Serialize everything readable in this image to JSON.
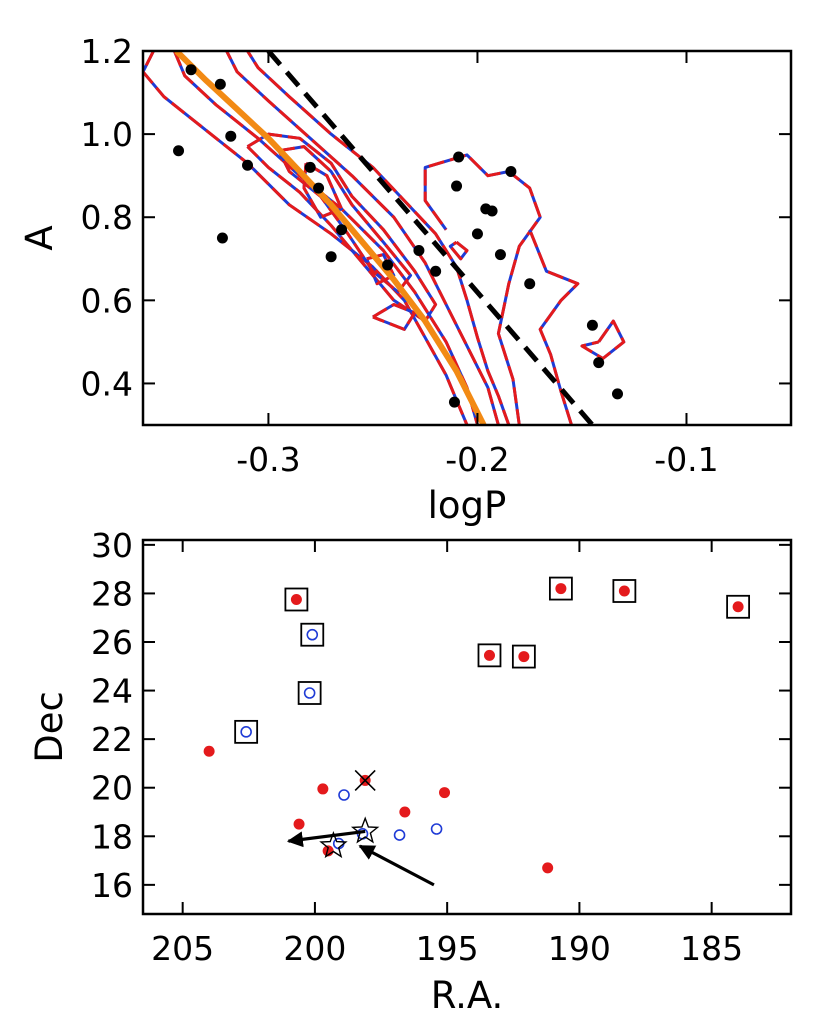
{
  "chart_data": [
    {
      "type": "scatter",
      "panel": "top",
      "xlabel": "logP",
      "ylabel": "A",
      "xlim": [
        -0.36,
        -0.05
      ],
      "ylim": [
        0.3,
        1.2
      ],
      "xticks": [
        -0.3,
        -0.2,
        -0.1
      ],
      "xtick_labels": [
        "-0.3",
        "-0.2",
        "-0.1"
      ],
      "yticks": [
        0.4,
        0.6,
        0.8,
        1.0,
        1.2
      ],
      "ytick_labels": [
        "0.4",
        "0.6",
        "0.8",
        "1.0",
        "1.2"
      ],
      "colors": {
        "points": "#000000",
        "contour_red": "#e41a1c",
        "contour_blue": "#1f3bd6",
        "fit_curve": "#f28a14",
        "dashed_line": "#000000"
      },
      "series": [
        {
          "name": "stars",
          "marker": "filled-circle",
          "x": [
            -0.343,
            -0.337,
            -0.323,
            -0.318,
            -0.322,
            -0.31,
            -0.28,
            -0.276,
            -0.265,
            -0.27,
            -0.243,
            -0.228,
            -0.22,
            -0.211,
            -0.21,
            -0.209,
            -0.2,
            -0.196,
            -0.193,
            -0.189,
            -0.184,
            -0.175,
            -0.145,
            -0.142,
            -0.133
          ],
          "y": [
            0.96,
            1.155,
            1.12,
            0.995,
            0.75,
            0.925,
            0.92,
            0.87,
            0.77,
            0.705,
            0.685,
            0.72,
            0.67,
            0.355,
            0.875,
            0.945,
            0.76,
            0.82,
            0.815,
            0.71,
            0.91,
            0.64,
            0.54,
            0.45,
            0.375
          ]
        },
        {
          "name": "fit curve",
          "style": "solid-orange",
          "x": [
            -0.344,
            -0.33,
            -0.315,
            -0.3,
            -0.285,
            -0.27,
            -0.255,
            -0.24,
            -0.225,
            -0.21,
            -0.197
          ],
          "y": [
            1.2,
            1.13,
            1.06,
            0.99,
            0.91,
            0.83,
            0.74,
            0.65,
            0.55,
            0.43,
            0.3
          ]
        },
        {
          "name": "dashed line",
          "style": "dashed-black",
          "x": [
            -0.3,
            -0.145
          ],
          "y": [
            1.2,
            0.3
          ]
        }
      ],
      "contours": [
        [
          [
            -0.355,
            1.2
          ],
          [
            -0.36,
            1.15
          ],
          [
            -0.35,
            1.09
          ],
          [
            -0.33,
            1.01
          ],
          [
            -0.31,
            0.93
          ],
          [
            -0.29,
            0.83
          ],
          [
            -0.27,
            0.76
          ],
          [
            -0.25,
            0.68
          ],
          [
            -0.235,
            0.6
          ],
          [
            -0.225,
            0.51
          ],
          [
            -0.215,
            0.42
          ],
          [
            -0.21,
            0.36
          ],
          [
            -0.205,
            0.3
          ]
        ],
        [
          [
            -0.185,
            0.3
          ],
          [
            -0.19,
            0.37
          ],
          [
            -0.195,
            0.43
          ],
          [
            -0.2,
            0.51
          ],
          [
            -0.205,
            0.6
          ],
          [
            -0.21,
            0.68
          ],
          [
            -0.22,
            0.76
          ],
          [
            -0.235,
            0.84
          ],
          [
            -0.25,
            0.92
          ],
          [
            -0.27,
            1.0
          ],
          [
            -0.29,
            1.09
          ],
          [
            -0.305,
            1.16
          ],
          [
            -0.31,
            1.2
          ]
        ],
        [
          [
            -0.345,
            1.2
          ],
          [
            -0.34,
            1.14
          ],
          [
            -0.325,
            1.07
          ],
          [
            -0.305,
            0.99
          ],
          [
            -0.285,
            0.9
          ],
          [
            -0.265,
            0.82
          ],
          [
            -0.245,
            0.72
          ],
          [
            -0.23,
            0.62
          ],
          [
            -0.215,
            0.5
          ],
          [
            -0.205,
            0.39
          ],
          [
            -0.2,
            0.3
          ]
        ],
        [
          [
            -0.19,
            0.3
          ],
          [
            -0.195,
            0.39
          ],
          [
            -0.205,
            0.49
          ],
          [
            -0.215,
            0.59
          ],
          [
            -0.225,
            0.69
          ],
          [
            -0.24,
            0.8
          ],
          [
            -0.26,
            0.9
          ],
          [
            -0.28,
            0.99
          ],
          [
            -0.3,
            1.08
          ],
          [
            -0.315,
            1.15
          ],
          [
            -0.32,
            1.2
          ]
        ],
        [
          [
            -0.31,
            0.97
          ],
          [
            -0.3,
            1.0
          ],
          [
            -0.285,
            0.99
          ],
          [
            -0.27,
            0.93
          ],
          [
            -0.26,
            0.85
          ],
          [
            -0.245,
            0.77
          ],
          [
            -0.23,
            0.67
          ],
          [
            -0.22,
            0.59
          ],
          [
            -0.225,
            0.55
          ],
          [
            -0.24,
            0.6
          ],
          [
            -0.255,
            0.69
          ],
          [
            -0.27,
            0.78
          ],
          [
            -0.285,
            0.86
          ],
          [
            -0.3,
            0.92
          ],
          [
            -0.31,
            0.97
          ]
        ],
        [
          [
            -0.295,
            0.96
          ],
          [
            -0.283,
            0.97
          ],
          [
            -0.27,
            0.91
          ],
          [
            -0.26,
            0.83
          ],
          [
            -0.245,
            0.74
          ],
          [
            -0.232,
            0.66
          ],
          [
            -0.238,
            0.62
          ],
          [
            -0.25,
            0.67
          ],
          [
            -0.262,
            0.76
          ],
          [
            -0.275,
            0.85
          ],
          [
            -0.29,
            0.91
          ],
          [
            -0.295,
            0.96
          ]
        ],
        [
          [
            -0.282,
            0.93
          ],
          [
            -0.272,
            0.9
          ],
          [
            -0.265,
            0.82
          ],
          [
            -0.275,
            0.8
          ],
          [
            -0.283,
            0.87
          ],
          [
            -0.282,
            0.93
          ]
        ],
        [
          [
            -0.253,
            0.7
          ],
          [
            -0.245,
            0.71
          ],
          [
            -0.24,
            0.66
          ],
          [
            -0.248,
            0.64
          ],
          [
            -0.253,
            0.7
          ]
        ],
        [
          [
            -0.18,
            0.3
          ],
          [
            -0.183,
            0.41
          ],
          [
            -0.19,
            0.52
          ],
          [
            -0.185,
            0.64
          ],
          [
            -0.18,
            0.73
          ],
          [
            -0.17,
            0.8
          ],
          [
            -0.175,
            0.87
          ],
          [
            -0.185,
            0.91
          ],
          [
            -0.195,
            0.9
          ],
          [
            -0.205,
            0.95
          ],
          [
            -0.225,
            0.92
          ],
          [
            -0.225,
            0.84
          ],
          [
            -0.215,
            0.77
          ]
        ],
        [
          [
            -0.155,
            0.3
          ],
          [
            -0.16,
            0.38
          ],
          [
            -0.165,
            0.47
          ],
          [
            -0.17,
            0.53
          ],
          [
            -0.16,
            0.6
          ],
          [
            -0.152,
            0.64
          ],
          [
            -0.167,
            0.67
          ],
          [
            -0.175,
            0.77
          ]
        ],
        [
          [
            -0.142,
            0.5
          ],
          [
            -0.135,
            0.55
          ],
          [
            -0.13,
            0.5
          ],
          [
            -0.14,
            0.46
          ],
          [
            -0.15,
            0.49
          ],
          [
            -0.142,
            0.5
          ]
        ],
        [
          [
            -0.21,
            0.74
          ],
          [
            -0.205,
            0.72
          ],
          [
            -0.208,
            0.7
          ],
          [
            -0.213,
            0.73
          ],
          [
            -0.21,
            0.74
          ]
        ],
        [
          [
            -0.25,
            0.56
          ],
          [
            -0.24,
            0.59
          ],
          [
            -0.23,
            0.57
          ],
          [
            -0.235,
            0.53
          ],
          [
            -0.25,
            0.56
          ]
        ]
      ]
    },
    {
      "type": "scatter",
      "panel": "bottom",
      "xlabel": "R.A.",
      "ylabel": "Dec",
      "xlim": [
        206.5,
        182
      ],
      "ylim": [
        14.8,
        30.2
      ],
      "xticks": [
        205,
        200,
        195,
        190,
        185
      ],
      "xtick_labels": [
        "205",
        "200",
        "195",
        "190",
        "185"
      ],
      "yticks": [
        16,
        18,
        20,
        22,
        24,
        26,
        28,
        30
      ],
      "ytick_labels": [
        "16",
        "18",
        "20",
        "22",
        "24",
        "26",
        "28",
        "30"
      ],
      "colors": {
        "filled": "#e41a1c",
        "open": "#1f3bd6",
        "box": "#000000",
        "arrow": "#000000"
      },
      "series": [
        {
          "name": "red filled circles",
          "marker": "filled-circle",
          "x": [
            200.7,
            193.4,
            192.1,
            190.7,
            188.3,
            184.0,
            204.0,
            200.6,
            199.7,
            199.5,
            198.1,
            196.6,
            195.1,
            191.2
          ],
          "y": [
            27.75,
            25.45,
            25.4,
            28.2,
            28.1,
            27.45,
            21.5,
            18.5,
            19.95,
            17.4,
            20.3,
            19.0,
            19.8,
            16.7
          ]
        },
        {
          "name": "blue open circles",
          "marker": "open-circle",
          "x": [
            200.1,
            200.2,
            202.6,
            198.9,
            199.1,
            198.2,
            196.8,
            195.4
          ],
          "y": [
            26.3,
            23.9,
            22.3,
            19.7,
            17.7,
            18.1,
            18.05,
            18.3
          ]
        },
        {
          "name": "boxed",
          "marker": "open-square",
          "x": [
            200.7,
            200.1,
            200.2,
            202.6,
            193.4,
            192.1,
            190.7,
            188.3,
            184.0
          ],
          "y": [
            27.75,
            26.3,
            23.9,
            22.3,
            25.45,
            25.4,
            28.2,
            28.1,
            27.45
          ]
        },
        {
          "name": "stars",
          "marker": "open-star",
          "x": [
            199.3,
            198.1
          ],
          "y": [
            17.6,
            18.2
          ]
        },
        {
          "name": "cross",
          "marker": "x",
          "x": [
            198.1
          ],
          "y": [
            20.3
          ]
        }
      ],
      "arrows": [
        {
          "x": [
            195.5,
            198.3
          ],
          "y": [
            16.0,
            17.6
          ]
        },
        {
          "x": [
            198.1,
            201.0
          ],
          "y": [
            18.2,
            17.8
          ]
        }
      ]
    }
  ]
}
